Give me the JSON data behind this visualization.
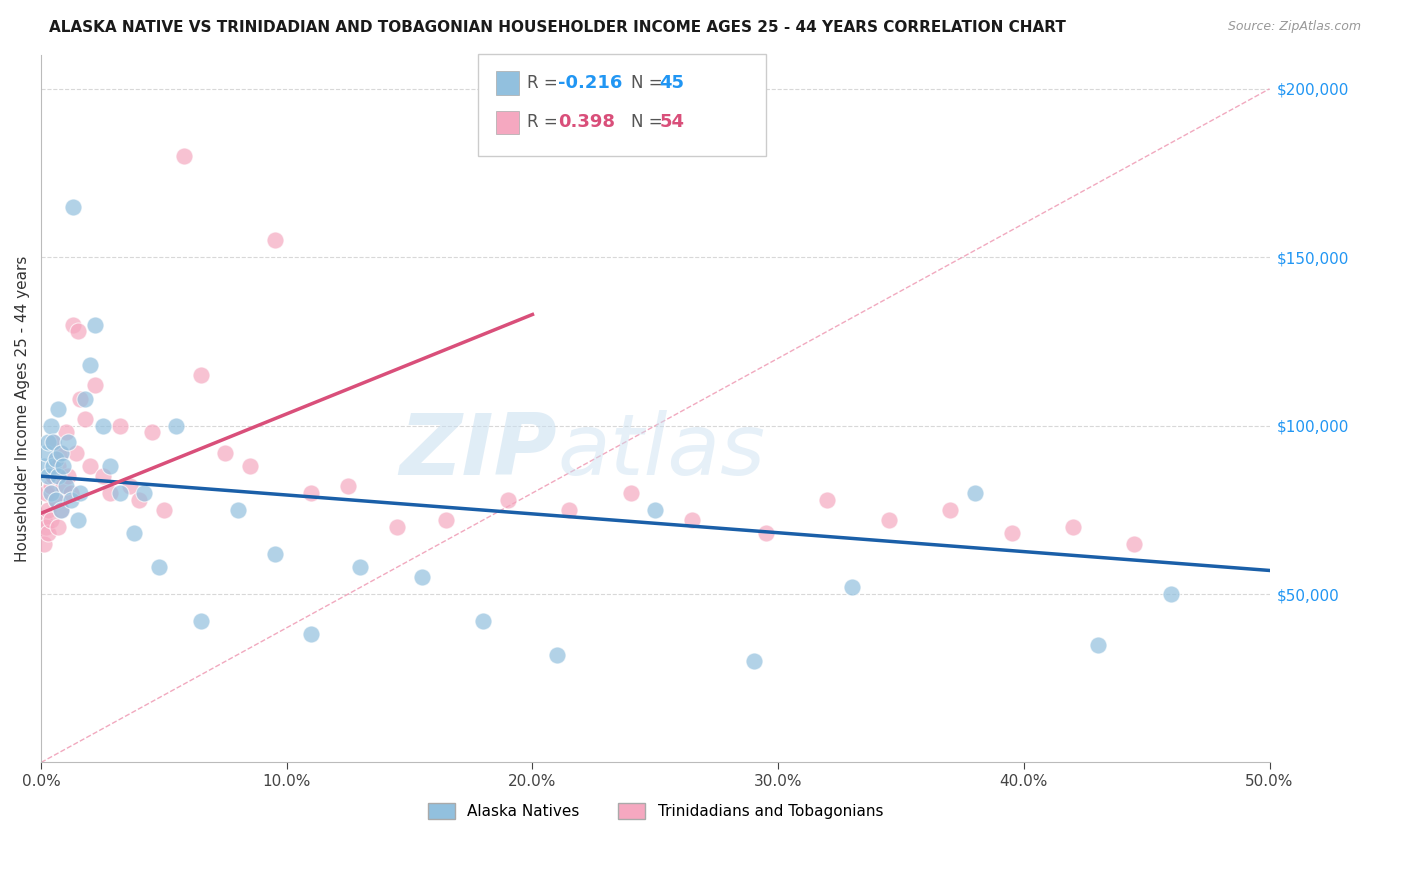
{
  "title": "ALASKA NATIVE VS TRINIDADIAN AND TOBAGONIAN HOUSEHOLDER INCOME AGES 25 - 44 YEARS CORRELATION CHART",
  "source": "Source: ZipAtlas.com",
  "ylabel": "Householder Income Ages 25 - 44 years",
  "xlim": [
    0.0,
    0.5
  ],
  "ylim": [
    0,
    210000
  ],
  "xticks": [
    0.0,
    0.1,
    0.2,
    0.3,
    0.4,
    0.5
  ],
  "ytick_vals": [
    50000,
    100000,
    150000,
    200000
  ],
  "ytick_right_labels": [
    "$50,000",
    "$100,000",
    "$150,000",
    "$200,000"
  ],
  "xtick_labels": [
    "0.0%",
    "10.0%",
    "20.0%",
    "30.0%",
    "40.0%",
    "50.0%"
  ],
  "legend_label_blue": "Alaska Natives",
  "legend_label_pink": "Trinidadians and Tobagonians",
  "R_blue": "-0.216",
  "N_blue": "45",
  "R_pink": "0.398",
  "N_pink": "54",
  "blue_scatter_color": "#92c0de",
  "pink_scatter_color": "#f5a8c0",
  "blue_line_color": "#1a5fa8",
  "pink_line_color": "#d94f7a",
  "ref_line_color": "#f0a0b8",
  "grid_color": "#d8d8d8",
  "alaska_x": [
    0.001,
    0.002,
    0.003,
    0.003,
    0.004,
    0.004,
    0.005,
    0.005,
    0.006,
    0.006,
    0.007,
    0.007,
    0.008,
    0.008,
    0.009,
    0.01,
    0.011,
    0.012,
    0.013,
    0.015,
    0.016,
    0.018,
    0.02,
    0.022,
    0.025,
    0.028,
    0.032,
    0.038,
    0.042,
    0.048,
    0.055,
    0.065,
    0.08,
    0.095,
    0.11,
    0.13,
    0.155,
    0.18,
    0.21,
    0.25,
    0.29,
    0.33,
    0.38,
    0.43,
    0.46
  ],
  "alaska_y": [
    88000,
    92000,
    95000,
    85000,
    100000,
    80000,
    95000,
    88000,
    90000,
    78000,
    105000,
    85000,
    92000,
    75000,
    88000,
    82000,
    95000,
    78000,
    165000,
    72000,
    80000,
    108000,
    118000,
    130000,
    100000,
    88000,
    80000,
    68000,
    80000,
    58000,
    100000,
    42000,
    75000,
    62000,
    38000,
    58000,
    55000,
    42000,
    32000,
    75000,
    30000,
    52000,
    80000,
    35000,
    50000
  ],
  "trini_x": [
    0.001,
    0.001,
    0.002,
    0.002,
    0.003,
    0.003,
    0.004,
    0.004,
    0.005,
    0.005,
    0.006,
    0.006,
    0.007,
    0.007,
    0.008,
    0.008,
    0.009,
    0.01,
    0.011,
    0.012,
    0.013,
    0.014,
    0.015,
    0.016,
    0.018,
    0.02,
    0.022,
    0.025,
    0.028,
    0.032,
    0.036,
    0.04,
    0.045,
    0.05,
    0.058,
    0.065,
    0.075,
    0.085,
    0.095,
    0.11,
    0.125,
    0.145,
    0.165,
    0.19,
    0.215,
    0.24,
    0.265,
    0.295,
    0.32,
    0.345,
    0.37,
    0.395,
    0.42,
    0.445
  ],
  "trini_y": [
    72000,
    65000,
    80000,
    70000,
    75000,
    68000,
    82000,
    72000,
    95000,
    85000,
    78000,
    90000,
    88000,
    70000,
    92000,
    75000,
    82000,
    98000,
    85000,
    80000,
    130000,
    92000,
    128000,
    108000,
    102000,
    88000,
    112000,
    85000,
    80000,
    100000,
    82000,
    78000,
    98000,
    75000,
    180000,
    115000,
    92000,
    88000,
    155000,
    80000,
    82000,
    70000,
    72000,
    78000,
    75000,
    80000,
    72000,
    68000,
    78000,
    72000,
    75000,
    68000,
    70000,
    65000
  ]
}
